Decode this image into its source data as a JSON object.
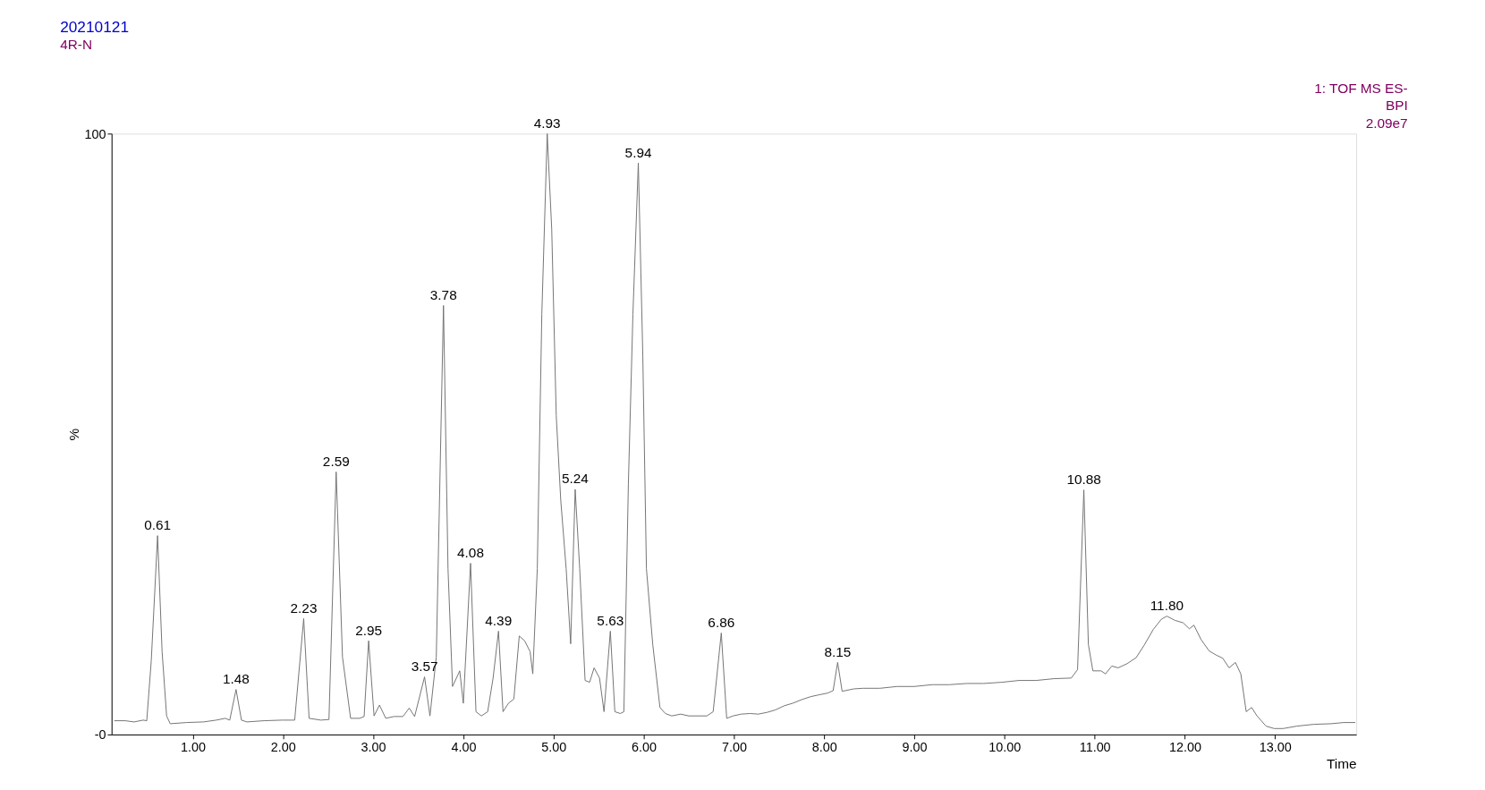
{
  "chart_data": {
    "type": "line",
    "title": "20210121",
    "subtitle": "4R-N",
    "xlabel": "Time",
    "ylabel": "%",
    "x": [
      0.13,
      0.25,
      0.35,
      0.45,
      0.49,
      0.54,
      0.61,
      0.66,
      0.71,
      0.75,
      0.93,
      1.12,
      1.26,
      1.36,
      1.41,
      1.48,
      1.54,
      1.6,
      1.79,
      1.99,
      2.13,
      2.23,
      2.29,
      2.42,
      2.51,
      2.59,
      2.66,
      2.75,
      2.85,
      2.9,
      2.95,
      3.01,
      3.07,
      3.14,
      3.23,
      3.33,
      3.4,
      3.46,
      3.57,
      3.63,
      3.7,
      3.78,
      3.83,
      3.88,
      3.96,
      4.0,
      4.08,
      4.14,
      4.2,
      4.27,
      4.33,
      4.39,
      4.44,
      4.5,
      4.56,
      4.62,
      4.68,
      4.74,
      4.77,
      4.82,
      4.87,
      4.93,
      4.98,
      5.03,
      5.08,
      5.14,
      5.19,
      5.24,
      5.29,
      5.35,
      5.4,
      5.45,
      5.51,
      5.56,
      5.63,
      5.68,
      5.74,
      5.78,
      5.83,
      5.88,
      5.94,
      5.99,
      6.03,
      6.1,
      6.18,
      6.24,
      6.31,
      6.41,
      6.5,
      6.7,
      6.77,
      6.86,
      6.92,
      6.99,
      7.08,
      7.18,
      7.27,
      7.37,
      7.46,
      7.56,
      7.65,
      7.75,
      7.85,
      7.94,
      8.04,
      8.1,
      8.15,
      8.2,
      8.33,
      8.43,
      8.62,
      8.81,
      9.0,
      9.2,
      9.39,
      9.58,
      9.77,
      9.97,
      10.16,
      10.35,
      10.55,
      10.74,
      10.81,
      10.88,
      10.93,
      10.98,
      11.07,
      11.12,
      11.19,
      11.26,
      11.36,
      11.46,
      11.55,
      11.65,
      11.74,
      11.8,
      11.89,
      11.98,
      12.05,
      12.1,
      12.18,
      12.27,
      12.35,
      12.42,
      12.49,
      12.56,
      12.62,
      12.68,
      12.74,
      12.8,
      12.9,
      12.99,
      13.09,
      13.24,
      13.43,
      13.62,
      13.76,
      13.89
    ],
    "series": [
      {
        "color": "#707070",
        "values": [
          2.3,
          2.3,
          2.1,
          2.4,
          2.3,
          12.3,
          33.1,
          13.8,
          3.1,
          1.8,
          2.0,
          2.1,
          2.4,
          2.7,
          2.4,
          7.5,
          2.4,
          2.1,
          2.3,
          2.4,
          2.4,
          19.3,
          2.7,
          2.4,
          2.5,
          43.7,
          12.9,
          2.7,
          2.7,
          3.0,
          15.6,
          3.1,
          4.9,
          2.7,
          3.0,
          3.0,
          4.4,
          3.0,
          9.6,
          3.1,
          12.9,
          71.4,
          27.6,
          8.0,
          10.6,
          5.2,
          28.5,
          3.8,
          3.1,
          3.8,
          9.4,
          17.2,
          3.8,
          5.2,
          5.9,
          16.4,
          15.6,
          13.8,
          10.1,
          27.6,
          69.9,
          100,
          84.1,
          53.1,
          39.0,
          27.6,
          15.1,
          40.8,
          27.6,
          9.0,
          8.7,
          11.1,
          9.4,
          3.8,
          17.2,
          3.8,
          3.5,
          3.8,
          41.8,
          69.9,
          95.1,
          63.0,
          27.6,
          15.0,
          4.5,
          3.5,
          3.1,
          3.4,
          3.1,
          3.1,
          3.8,
          16.9,
          2.7,
          3.1,
          3.4,
          3.5,
          3.4,
          3.7,
          4.1,
          4.8,
          5.2,
          5.8,
          6.3,
          6.6,
          6.9,
          7.3,
          12.0,
          7.2,
          7.6,
          7.7,
          7.7,
          8.0,
          8.0,
          8.3,
          8.3,
          8.5,
          8.5,
          8.7,
          9.0,
          9.0,
          9.3,
          9.4,
          10.8,
          40.7,
          15.0,
          10.6,
          10.6,
          10.1,
          11.4,
          11.1,
          11.8,
          12.8,
          14.9,
          17.5,
          19.2,
          19.7,
          19.0,
          18.6,
          17.6,
          18.2,
          15.8,
          13.9,
          13.2,
          12.7,
          11.1,
          12.0,
          10.1,
          3.8,
          4.5,
          3.1,
          1.4,
          1.0,
          1.0,
          1.4,
          1.7,
          1.8,
          2.0,
          2.0
        ]
      }
    ],
    "xlim": [
      0.1,
      13.9
    ],
    "ylim": [
      0,
      100
    ],
    "xticks": [
      {
        "value": 1,
        "label": "1.00"
      },
      {
        "value": 2,
        "label": "2.00"
      },
      {
        "value": 3,
        "label": "3.00"
      },
      {
        "value": 4,
        "label": "4.00"
      },
      {
        "value": 5,
        "label": "5.00"
      },
      {
        "value": 6,
        "label": "6.00"
      },
      {
        "value": 7,
        "label": "7.00"
      },
      {
        "value": 8,
        "label": "8.00"
      },
      {
        "value": 9,
        "label": "9.00"
      },
      {
        "value": 10,
        "label": "10.00"
      },
      {
        "value": 11,
        "label": "11.00"
      },
      {
        "value": 12,
        "label": "12.00"
      },
      {
        "value": 13,
        "label": "13.00"
      }
    ],
    "yticks": [
      {
        "value": 0,
        "label": "-0"
      },
      100
    ],
    "grid": false,
    "annotations": [
      "1: TOF MS ES-",
      "BPI",
      "2.09e7",
      {
        "text": "0.61",
        "x": 0.61,
        "y": 33.1
      },
      {
        "text": "1.48",
        "x": 1.48,
        "y": 7.5
      },
      {
        "text": "2.23",
        "x": 2.23,
        "y": 19.3
      },
      {
        "text": "2.59",
        "x": 2.59,
        "y": 43.7
      },
      {
        "text": "2.95",
        "x": 2.95,
        "y": 15.6
      },
      {
        "text": "3.57",
        "x": 3.57,
        "y": 9.6
      },
      {
        "text": "3.78",
        "x": 3.78,
        "y": 71.4
      },
      {
        "text": "4.08",
        "x": 4.08,
        "y": 28.5
      },
      {
        "text": "4.39",
        "x": 4.39,
        "y": 17.2
      },
      {
        "text": "4.93",
        "x": 4.93,
        "y": 100
      },
      {
        "text": "5.24",
        "x": 5.24,
        "y": 40.8
      },
      {
        "text": "5.63",
        "x": 5.63,
        "y": 17.2
      },
      {
        "text": "5.94",
        "x": 5.94,
        "y": 95.1
      },
      {
        "text": "6.86",
        "x": 6.86,
        "y": 16.9
      },
      {
        "text": "8.15",
        "x": 8.15,
        "y": 12.0
      },
      {
        "text": "10.88",
        "x": 10.88,
        "y": 40.7
      },
      {
        "text": "11.80",
        "x": 11.8,
        "y": 19.7
      }
    ]
  }
}
